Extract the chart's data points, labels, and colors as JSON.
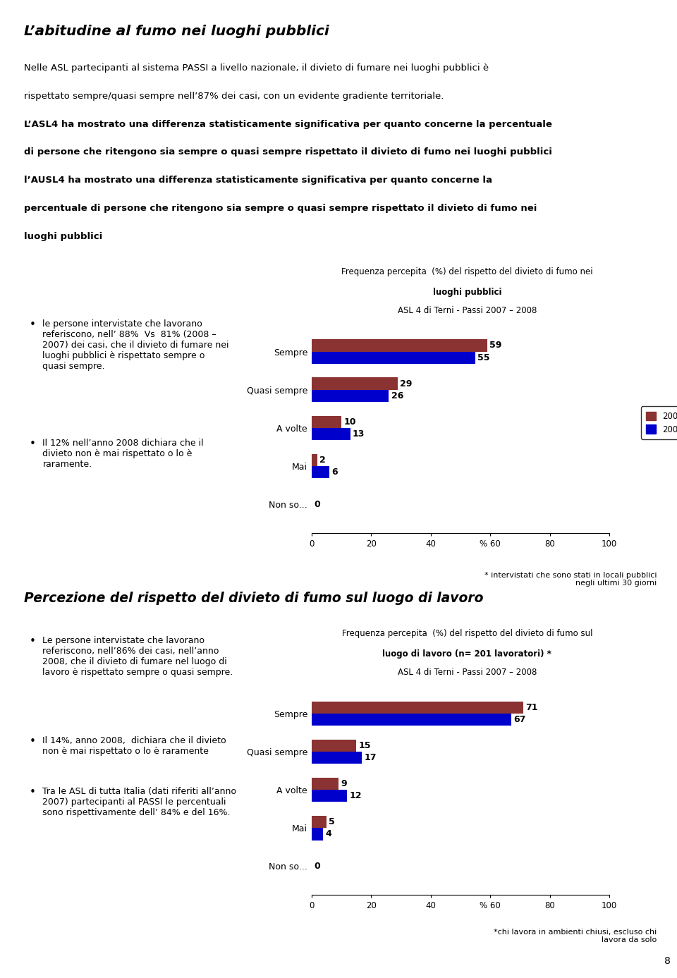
{
  "title_main": "L’abitudine al fumo nei luoghi pubblici",
  "intro_line1": "Nelle ASL partecipanti al sistema PASSI a livello nazionale, il divieto di fumare nei luoghi pubblici è",
  "intro_line2": "rispettato sempre/quasi sempre nell’87% dei casi, con un evidente gradiente territoriale.",
  "intro_line3": "L’ASL4 ha mostrato una differenza statisticamente significativa per quanto concerne la percentuale",
  "intro_line4": "di persone che ritengono sia sempre o quasi sempre rispettato il divieto di fumo nei luoghi pubblici",
  "intro_line5": "l’AUSL4 ha mostrato una differenza statisticamente significativa per quanto concerne la",
  "intro_line6": "percentuale di persone che ritengono sia sempre o quasi sempre rispettato il divieto di fumo nei",
  "intro_line7": "luoghi pubblici",
  "bullet1_text": "le persone intervistate che lavorano\nreferiscono, nell’ 88%  Vs  81% (2008 –\n2007) dei casi, che il divieto di fumare nei\nluoghi pubblici è rispettato sempre o\nquasi sempre.",
  "bullet2_text": "Il 12% nell’anno 2008 dichiara che il\ndivieto non è mai rispettato o lo è\nraramente.",
  "chart1_title_line1": "Frequenza percepita  (%) del rispetto del divieto di fumo nei",
  "chart1_title_line2": "luoghi pubblici",
  "chart1_title_line3": "ASL 4 di Terni - Passi 2007 – 2008",
  "chart1_categories": [
    "Sempre",
    "Quasi sempre",
    "A volte",
    "Mai",
    "Non so..."
  ],
  "chart1_values_2008": [
    59,
    29,
    10,
    2,
    0
  ],
  "chart1_values_2007": [
    55,
    26,
    13,
    6,
    0
  ],
  "chart1_color_2008": "#8B3232",
  "chart1_color_2007": "#0000CC",
  "chart1_xtick_labels": [
    "0",
    "20",
    "40",
    "% 60",
    "80",
    "100"
  ],
  "chart1_footnote": "* intervistati che sono stati in locali pubblici\nnegli ultimi 30 giorni",
  "title2": "Percezione del rispetto del divieto di fumo sul luogo di lavoro",
  "section2_bullet1": "Le persone intervistate che lavorano\nreferiscono, nell’86% dei casi, nell’anno\n2008, che il divieto di fumare nel luogo di\nlavoro è rispettato sempre o quasi sempre.",
  "section2_bullet2": "Il 14%, anno 2008,  dichiara che il divieto\nnon è mai rispettato o lo è raramente",
  "section2_bullet3": "Tra le ASL di tutta Italia (dati riferiti all’anno\n2007) partecipanti al PASSI le percentuali\nsono rispettivamente dell’ 84% e del 16%.",
  "chart2_title_line1": "Frequenza percepita  (%) del rispetto del divieto di fumo sul",
  "chart2_title_line2": "luogo di lavoro (n= 201 lavoratori) *",
  "chart2_title_line3": "ASL 4 di Terni - Passi 2007 – 2008",
  "chart2_categories": [
    "Sempre",
    "Quasi sempre",
    "A volte",
    "Mai",
    "Non so..."
  ],
  "chart2_values_2008": [
    71,
    15,
    9,
    5,
    0
  ],
  "chart2_values_2007": [
    67,
    17,
    12,
    4,
    0
  ],
  "chart2_color_2008": "#8B3232",
  "chart2_color_2007": "#0000CC",
  "chart2_xtick_labels": [
    "0",
    "20",
    "40",
    "% 60",
    "80",
    "100"
  ],
  "chart2_footnote": "*chi lavora in ambienti chiusi, escluso chi\nlavora da solo",
  "page_num": "8",
  "bg_color": "#FFFFFF"
}
